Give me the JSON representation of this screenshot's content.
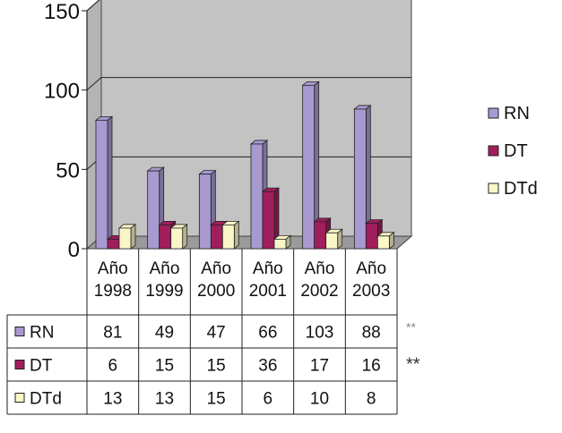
{
  "chart_data": {
    "type": "bar",
    "title": "",
    "xlabel": "",
    "ylabel": "",
    "ylim": [
      0,
      150
    ],
    "yticks": [
      0,
      50,
      100,
      150
    ],
    "grid": true,
    "legend_position": "right",
    "categories": [
      {
        "line1": "Año",
        "line2": "1998"
      },
      {
        "line1": "Año",
        "line2": "1999"
      },
      {
        "line1": "Año",
        "line2": "2000"
      },
      {
        "line1": "Año",
        "line2": "2001"
      },
      {
        "line1": "Año",
        "line2": "2002"
      },
      {
        "line1": "Año",
        "line2": "2003"
      }
    ],
    "series": [
      {
        "name": "RN",
        "color": "#a89ad0",
        "values": [
          81,
          49,
          47,
          66,
          103,
          88
        ]
      },
      {
        "name": "DT",
        "color": "#a01e5c",
        "values": [
          6,
          15,
          15,
          36,
          17,
          16
        ]
      },
      {
        "name": "DTd",
        "color": "#fbf6c8",
        "values": [
          13,
          13,
          15,
          6,
          10,
          8
        ]
      }
    ],
    "table_annotations": [
      "**",
      "**",
      ""
    ]
  }
}
